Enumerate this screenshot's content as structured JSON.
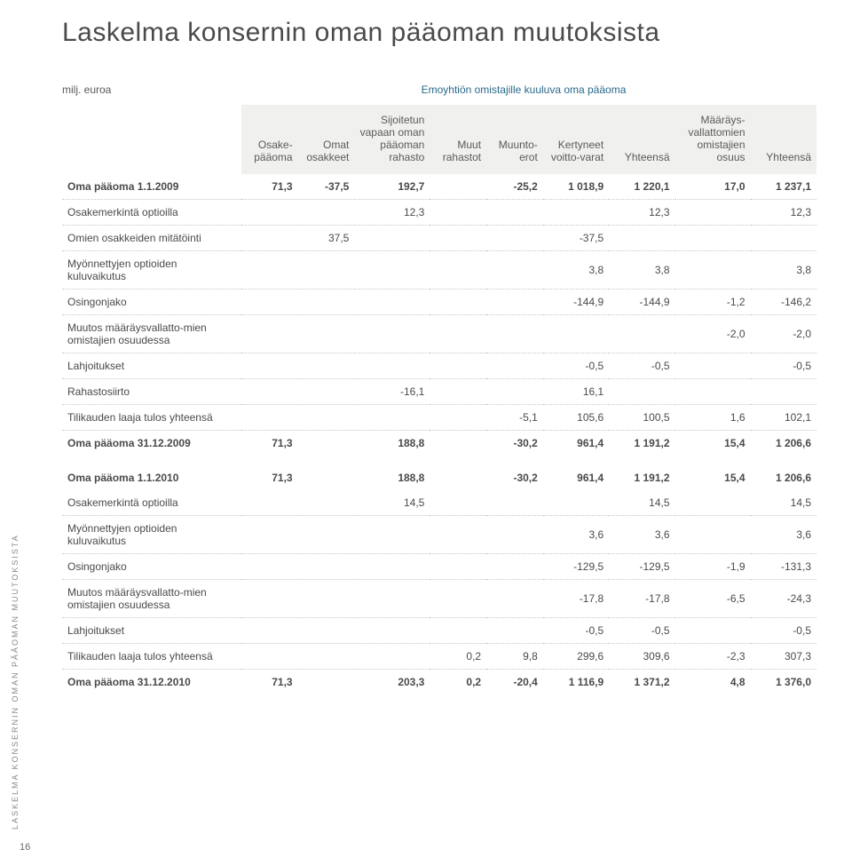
{
  "title": "Laskelma konsernin oman pääoman muutoksista",
  "subtitle_left": "milj. euroa",
  "subtitle_right": "Emoyhtiön omistajille kuuluva oma pääoma",
  "side_label": "LASKELMA KONSERNIN OMAN PÄÄOMAN MUUTOKSISTA",
  "page_number": "16",
  "columns": [
    "Osake-pääoma",
    "Omat osakkeet",
    "Sijoitetun vapaan oman pääoman rahasto",
    "Muut rahastot",
    "Muunto-erot",
    "Kertyneet voitto-varat",
    "Yhteensä",
    "Määräys-vallattomien omistajien osuus",
    "Yhteensä"
  ],
  "rows": [
    {
      "label": "Oma pääoma 1.1.2009",
      "cells": [
        "71,3",
        "-37,5",
        "192,7",
        "",
        "-25,2",
        "1 018,9",
        "1 220,1",
        "17,0",
        "1 237,1"
      ],
      "cls": "bold-top"
    },
    {
      "label": "Osakemerkintä optioilla",
      "cells": [
        "",
        "",
        "12,3",
        "",
        "",
        "",
        "12,3",
        "",
        "12,3"
      ]
    },
    {
      "label": "Omien osakkeiden mitätöinti",
      "cells": [
        "",
        "37,5",
        "",
        "",
        "",
        "-37,5",
        "",
        "",
        ""
      ]
    },
    {
      "label": "Myönnettyjen optioiden kuluvaikutus",
      "cells": [
        "",
        "",
        "",
        "",
        "",
        "3,8",
        "3,8",
        "",
        "3,8"
      ]
    },
    {
      "label": "Osingonjako",
      "cells": [
        "",
        "",
        "",
        "",
        "",
        "-144,9",
        "-144,9",
        "-1,2",
        "-146,2"
      ]
    },
    {
      "label": "Muutos määräysvallatto-mien omistajien osuudessa",
      "cells": [
        "",
        "",
        "",
        "",
        "",
        "",
        "",
        "-2,0",
        "-2,0"
      ]
    },
    {
      "label": "Lahjoitukset",
      "cells": [
        "",
        "",
        "",
        "",
        "",
        "-0,5",
        "-0,5",
        "",
        "-0,5"
      ]
    },
    {
      "label": "Rahastosiirto",
      "cells": [
        "",
        "",
        "-16,1",
        "",
        "",
        "16,1",
        "",
        "",
        ""
      ]
    },
    {
      "label": "Tilikauden laaja tulos yhteensä",
      "cells": [
        "",
        "",
        "",
        "",
        "-5,1",
        "105,6",
        "100,5",
        "1,6",
        "102,1"
      ]
    },
    {
      "label": "Oma pääoma 31.12.2009",
      "cells": [
        "71,3",
        "",
        "188,8",
        "",
        "-30,2",
        "961,4",
        "1 191,2",
        "15,4",
        "1 206,6"
      ],
      "cls": "bold noborder"
    },
    {
      "label": "Oma pääoma 1.1.2010",
      "cells": [
        "71,3",
        "",
        "188,8",
        "",
        "-30,2",
        "961,4",
        "1 191,2",
        "15,4",
        "1 206,6"
      ],
      "cls": "bold-top section-gap"
    },
    {
      "label": "Osakemerkintä optioilla",
      "cells": [
        "",
        "",
        "14,5",
        "",
        "",
        "",
        "14,5",
        "",
        "14,5"
      ]
    },
    {
      "label": "Myönnettyjen optioiden kuluvaikutus",
      "cells": [
        "",
        "",
        "",
        "",
        "",
        "3,6",
        "3,6",
        "",
        "3,6"
      ]
    },
    {
      "label": "Osingonjako",
      "cells": [
        "",
        "",
        "",
        "",
        "",
        "-129,5",
        "-129,5",
        "-1,9",
        "-131,3"
      ]
    },
    {
      "label": "Muutos määräysvallatto-mien omistajien osuudessa",
      "cells": [
        "",
        "",
        "",
        "",
        "",
        "-17,8",
        "-17,8",
        "-6,5",
        "-24,3"
      ]
    },
    {
      "label": "Lahjoitukset",
      "cells": [
        "",
        "",
        "",
        "",
        "",
        "-0,5",
        "-0,5",
        "",
        "-0,5"
      ]
    },
    {
      "label": "Tilikauden laaja tulos yhteensä",
      "cells": [
        "",
        "",
        "",
        "0,2",
        "9,8",
        "299,6",
        "309,6",
        "-2,3",
        "307,3"
      ]
    },
    {
      "label": "Oma pääoma 31.12.2010",
      "cells": [
        "71,3",
        "",
        "203,3",
        "0,2",
        "-20,4",
        "1 116,9",
        "1 371,2",
        "4,8",
        "1 376,0"
      ],
      "cls": "bold noborder"
    }
  ],
  "colors": {
    "header_bg": "#f0f0ee",
    "text": "#4a4a4a",
    "subtitle_link": "#2a6a8a",
    "dots": "#c8c8c0"
  }
}
